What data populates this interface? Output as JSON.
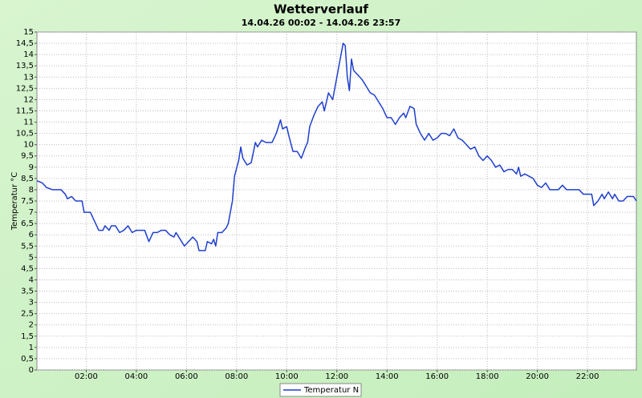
{
  "chart_data": {
    "type": "line",
    "title": "Wetterverlauf",
    "subtitle": "14.04.26 00:02 - 14.04.26 23:57",
    "y_label": "Temperatur °C",
    "xlim": [
      "00:02",
      "23:57"
    ],
    "xticks": [
      "02:00",
      "04:00",
      "06:00",
      "08:00",
      "10:00",
      "12:00",
      "14:00",
      "16:00",
      "18:00",
      "20:00",
      "22:00"
    ],
    "ylim": [
      0,
      15
    ],
    "yticks": [
      0,
      {
        "value": 0.5,
        "label": "0,5"
      },
      1,
      {
        "value": 1.5,
        "label": "1,5"
      },
      2,
      {
        "value": 2.5,
        "label": "2,5"
      },
      3,
      {
        "value": 3.5,
        "label": "3,5"
      },
      4,
      {
        "value": 4.5,
        "label": "4,5"
      },
      5,
      {
        "value": 5.5,
        "label": "5,5"
      },
      6,
      {
        "value": 6.5,
        "label": "6,5"
      },
      7,
      {
        "value": 7.5,
        "label": "7,5"
      },
      8,
      {
        "value": 8.5,
        "label": "8,5"
      },
      9,
      {
        "value": 9.5,
        "label": "9,5"
      },
      10,
      {
        "value": 10.5,
        "label": "10,5"
      },
      11,
      {
        "value": 11.5,
        "label": "11,5"
      },
      12,
      {
        "value": 12.5,
        "label": "12,5"
      },
      13,
      {
        "value": 13.5,
        "label": "13,5"
      },
      14,
      {
        "value": 14.5,
        "label": "14,5"
      },
      15
    ],
    "grid": true,
    "legend": "bottom",
    "x": [
      "00:02",
      "00:15",
      "00:25",
      "00:40",
      "01:00",
      "01:10",
      "01:15",
      "01:25",
      "01:35",
      "01:50",
      "01:55",
      "02:10",
      "02:20",
      "02:30",
      "02:40",
      "02:45",
      "02:55",
      "03:00",
      "03:10",
      "03:20",
      "03:30",
      "03:40",
      "03:50",
      "04:00",
      "04:20",
      "04:30",
      "04:40",
      "04:50",
      "05:00",
      "05:10",
      "05:20",
      "05:30",
      "05:35",
      "05:45",
      "05:55",
      "06:00",
      "06:15",
      "06:25",
      "06:30",
      "06:45",
      "06:50",
      "07:00",
      "07:05",
      "07:10",
      "07:15",
      "07:25",
      "07:35",
      "07:40",
      "07:50",
      "07:55",
      "08:05",
      "08:10",
      "08:15",
      "08:25",
      "08:35",
      "08:45",
      "08:50",
      "09:00",
      "09:10",
      "09:25",
      "09:35",
      "09:45",
      "09:50",
      "10:00",
      "10:05",
      "10:15",
      "10:25",
      "10:35",
      "10:45",
      "10:50",
      "10:55",
      "11:05",
      "11:15",
      "11:25",
      "11:30",
      "11:40",
      "11:50",
      "11:55",
      "12:05",
      "12:10",
      "12:15",
      "12:20",
      "12:25",
      "12:30",
      "12:35",
      "12:40",
      "12:50",
      "13:00",
      "13:10",
      "13:20",
      "13:30",
      "13:40",
      "13:50",
      "14:00",
      "14:10",
      "14:20",
      "14:30",
      "14:40",
      "14:45",
      "14:55",
      "15:05",
      "15:10",
      "15:20",
      "15:30",
      "15:40",
      "15:50",
      "16:00",
      "16:10",
      "16:20",
      "16:30",
      "16:40",
      "16:50",
      "17:00",
      "17:10",
      "17:20",
      "17:30",
      "17:40",
      "17:50",
      "18:00",
      "18:10",
      "18:20",
      "18:30",
      "18:40",
      "18:50",
      "19:00",
      "19:10",
      "19:15",
      "19:20",
      "19:30",
      "19:40",
      "19:50",
      "20:00",
      "20:10",
      "20:20",
      "20:30",
      "20:40",
      "20:50",
      "21:00",
      "21:10",
      "21:20",
      "21:30",
      "21:40",
      "21:50",
      "22:10",
      "22:15",
      "22:25",
      "22:35",
      "22:40",
      "22:50",
      "23:00",
      "23:05",
      "23:15",
      "23:25",
      "23:35",
      "23:50",
      "23:57"
    ],
    "series": [
      {
        "name": "Temperatur N",
        "color": "#1f3fcf",
        "values": [
          8.4,
          8.3,
          8.1,
          8.0,
          8.0,
          7.8,
          7.6,
          7.7,
          7.5,
          7.5,
          7.0,
          7.0,
          6.6,
          6.2,
          6.2,
          6.4,
          6.2,
          6.4,
          6.4,
          6.1,
          6.2,
          6.4,
          6.1,
          6.2,
          6.2,
          5.7,
          6.1,
          6.1,
          6.2,
          6.2,
          6.0,
          5.9,
          6.1,
          5.8,
          5.5,
          5.6,
          5.9,
          5.7,
          5.3,
          5.3,
          5.7,
          5.6,
          5.8,
          5.5,
          6.1,
          6.1,
          6.3,
          6.5,
          7.5,
          8.6,
          9.3,
          9.9,
          9.4,
          9.1,
          9.2,
          10.1,
          9.9,
          10.2,
          10.1,
          10.1,
          10.5,
          11.1,
          10.7,
          10.8,
          10.4,
          9.7,
          9.7,
          9.4,
          9.9,
          10.1,
          10.8,
          11.3,
          11.7,
          11.9,
          11.5,
          12.3,
          12.0,
          12.5,
          13.5,
          14.0,
          14.5,
          14.4,
          13.0,
          12.4,
          13.8,
          13.3,
          13.1,
          12.9,
          12.6,
          12.3,
          12.2,
          11.9,
          11.6,
          11.2,
          11.2,
          10.9,
          11.2,
          11.4,
          11.2,
          11.7,
          11.6,
          10.9,
          10.5,
          10.2,
          10.5,
          10.2,
          10.3,
          10.5,
          10.5,
          10.4,
          10.7,
          10.3,
          10.2,
          10.0,
          9.8,
          9.9,
          9.5,
          9.3,
          9.5,
          9.3,
          9.0,
          9.1,
          8.8,
          8.9,
          8.9,
          8.7,
          9.0,
          8.6,
          8.7,
          8.6,
          8.5,
          8.2,
          8.1,
          8.3,
          8.0,
          8.0,
          8.0,
          8.2,
          8.0,
          8.0,
          8.0,
          8.0,
          7.8,
          7.8,
          7.3,
          7.5,
          7.8,
          7.6,
          7.9,
          7.6,
          7.8,
          7.5,
          7.5,
          7.7,
          7.7,
          7.5
        ]
      }
    ]
  }
}
